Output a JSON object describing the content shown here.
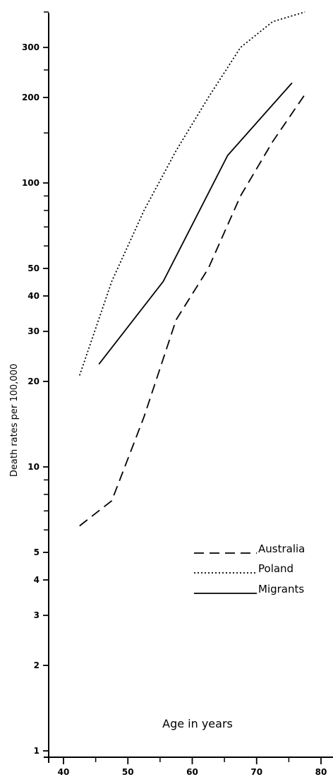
{
  "chart_data": {
    "type": "line",
    "xlabel": "Age in years",
    "ylabel": "Death rates per 100,000",
    "xlim": [
      40,
      80
    ],
    "ylim": [
      1,
      400
    ],
    "yscale": "log",
    "x_ticks": [
      "40",
      "50",
      "60",
      "70",
      "80"
    ],
    "y_ticks": [
      "1",
      "2",
      "3",
      "4",
      "5",
      "10",
      "20",
      "30",
      "40",
      "50",
      "100",
      "200",
      "300"
    ],
    "legend_placement": "lower-right",
    "series": [
      {
        "name": "Australia",
        "style": "dashed",
        "color": "#000000",
        "x": [
          42.5,
          47.5,
          52.5,
          57.5,
          62.5,
          67.5,
          72.5,
          77.5
        ],
        "y": [
          6.2,
          7.6,
          15,
          33,
          50,
          90,
          140,
          205
        ]
      },
      {
        "name": "Poland",
        "style": "dotted",
        "color": "#000000",
        "x": [
          42.5,
          47.5,
          52.5,
          57.5,
          62.5,
          67.5,
          72.5,
          77.5
        ],
        "y": [
          21,
          45,
          80,
          130,
          200,
          300,
          370,
          400
        ]
      },
      {
        "name": "Migrants",
        "style": "solid",
        "color": "#000000",
        "x": [
          45.5,
          55.5,
          65.5,
          75.5
        ],
        "y": [
          23,
          45,
          125,
          225
        ]
      }
    ]
  }
}
